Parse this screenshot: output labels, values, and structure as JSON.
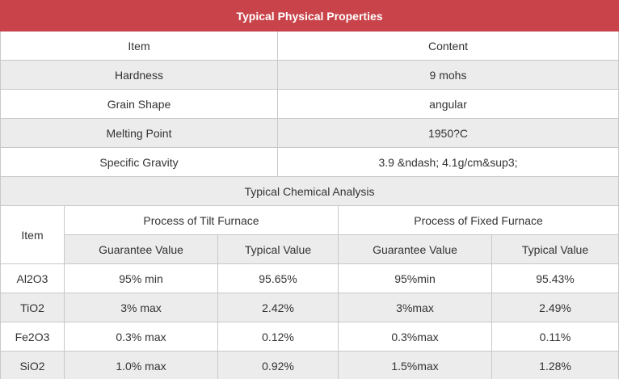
{
  "title": "Typical Physical Properties",
  "physical": {
    "header": [
      "Item",
      "Content"
    ],
    "rows": [
      [
        "Hardness",
        "9 mohs"
      ],
      [
        "Grain Shape",
        "angular"
      ],
      [
        "Melting Point",
        "1950?C"
      ],
      [
        "Specific Gravity",
        "3.9 &ndash; 4.1g/cm&sup3;"
      ]
    ]
  },
  "chemical": {
    "title": "Typical Chemical Analysis",
    "header": [
      "Item",
      "Process of Tilt Furnace",
      "Process of Fixed Furnace"
    ],
    "subheader": [
      "Guarantee Value",
      "Typical Value",
      "Guarantee Value",
      "Typical  Value"
    ],
    "rows": [
      [
        "Al2O3",
        "95% min",
        "95.65%",
        "95%min",
        "95.43%"
      ],
      [
        "TiO2",
        "3% max",
        "2.42%",
        "3%max",
        "2.49%"
      ],
      [
        "Fe2O3",
        "0.3% max",
        "0.12%",
        "0.3%max",
        "0.11%"
      ],
      [
        "SiO2",
        "1.0% max",
        "0.92%",
        "1.5%max",
        "1.28%"
      ]
    ]
  }
}
